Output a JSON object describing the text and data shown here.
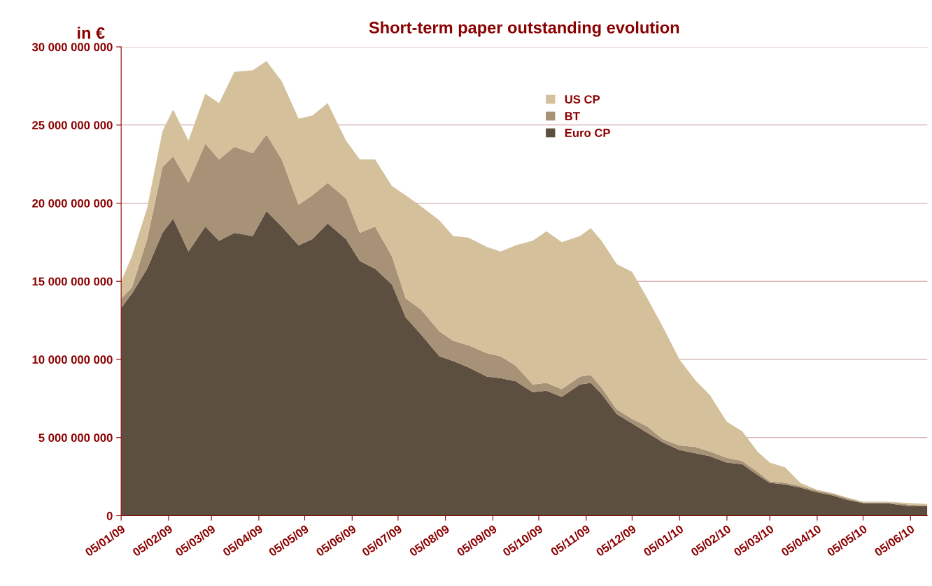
{
  "chart_data": {
    "type": "area",
    "stacked": true,
    "title": "Short-term paper outstanding evolution",
    "ylabel": "in €",
    "x": [
      "2009-01-05",
      "2009-01-12",
      "2009-01-22",
      "2009-02-01",
      "2009-02-08",
      "2009-02-18",
      "2009-03-01",
      "2009-03-10",
      "2009-03-20",
      "2009-04-01",
      "2009-04-10",
      "2009-04-20",
      "2009-05-01",
      "2009-05-10",
      "2009-05-20",
      "2009-06-01",
      "2009-06-10",
      "2009-06-20",
      "2009-07-01",
      "2009-07-10",
      "2009-07-20",
      "2009-08-01",
      "2009-08-10",
      "2009-08-20",
      "2009-09-01",
      "2009-09-10",
      "2009-09-20",
      "2009-10-01",
      "2009-10-10",
      "2009-10-20",
      "2009-11-01",
      "2009-11-08",
      "2009-11-15",
      "2009-11-25",
      "2009-12-05",
      "2009-12-15",
      "2009-12-25",
      "2010-01-05",
      "2010-01-15",
      "2010-01-25",
      "2010-02-05",
      "2010-02-15",
      "2010-02-25",
      "2010-03-05",
      "2010-03-15",
      "2010-03-25",
      "2010-04-05",
      "2010-04-15",
      "2010-04-25",
      "2010-05-05",
      "2010-05-20",
      "2010-06-05",
      "2010-06-16"
    ],
    "series": [
      {
        "name": "Euro CP",
        "color": "#5c4f3f",
        "values": [
          13300000000.0,
          14200000000.0,
          15800000000.0,
          18100000000.0,
          19000000000.0,
          16900000000.0,
          18500000000.0,
          17600000000.0,
          18100000000.0,
          17900000000.0,
          19500000000.0,
          18500000000.0,
          17300000000.0,
          17700000000.0,
          18700000000.0,
          17700000000.0,
          16300000000.0,
          15800000000.0,
          14800000000.0,
          12700000000.0,
          11600000000.0,
          10200000000.0,
          9900000000.0,
          9500000000.0,
          8900000000.0,
          8800000000.0,
          8600000000.0,
          7900000000.0,
          8000000000.0,
          7600000000.0,
          8400000000.0,
          8500000000.0,
          7800000000.0,
          6500000000.0,
          5900000000.0,
          5300000000.0,
          4700000000.0,
          4200000000.0,
          4000000000.0,
          3800000000.0,
          3400000000.0,
          3300000000.0,
          2600000000.0,
          2100000000.0,
          2000000000.0,
          1800000000.0,
          1500000000.0,
          1300000000.0,
          1000000000.0,
          800000000.0,
          800000000.0,
          600000000.0,
          600000000.0
        ]
      },
      {
        "name": "BT",
        "color": "#a89277",
        "values": [
          600000000.0,
          400000000.0,
          1900000000.0,
          4200000000.0,
          4000000000.0,
          4400000000.0,
          5300000000.0,
          5200000000.0,
          5500000000.0,
          5300000000.0,
          4900000000.0,
          4300000000.0,
          2600000000.0,
          2800000000.0,
          2600000000.0,
          2600000000.0,
          1800000000.0,
          2700000000.0,
          1800000000.0,
          1200000000.0,
          1600000000.0,
          1600000000.0,
          1300000000.0,
          1400000000.0,
          1500000000.0,
          1400000000.0,
          1000000000.0,
          500000000.0,
          500000000.0,
          500000000.0,
          500000000.0,
          500000000.0,
          400000000.0,
          300000000.0,
          300000000.0,
          400000000.0,
          200000000.0,
          300000000.0,
          400000000.0,
          300000000.0,
          300000000.0,
          200000000.0,
          200000000.0,
          100000000.0,
          100000000.0,
          100000000.0,
          100000000.0,
          100000000.0,
          100000000.0,
          50000000.0,
          50000000.0,
          100000000.0,
          50000000.0
        ]
      },
      {
        "name": "US CP",
        "color": "#d4c19c",
        "values": [
          1100000000.0,
          2000000000.0,
          2000000000.0,
          2300000000.0,
          3000000000.0,
          2700000000.0,
          3200000000.0,
          3600000000.0,
          4800000000.0,
          5300000000.0,
          4700000000.0,
          5000000000.0,
          5500000000.0,
          5100000000.0,
          5100000000.0,
          3700000000.0,
          4700000000.0,
          4300000000.0,
          4500000000.0,
          6600000000.0,
          6600000000.0,
          7100000000.0,
          6700000000.0,
          6900000000.0,
          6800000000.0,
          6700000000.0,
          7700000000.0,
          9200000000.0,
          9700000000.0,
          9400000000.0,
          9000000000.0,
          9400000000.0,
          9400000000.0,
          9300000000.0,
          9400000000.0,
          8200000000.0,
          7200000000.0,
          5500000000.0,
          4300000000.0,
          3600000000.0,
          2300000000.0,
          1900000000.0,
          1300000000.0,
          1200000000.0,
          1000000000.0,
          200000000.0,
          50000000.0,
          50000000.0,
          50000000.0,
          50000000.0,
          50000000.0,
          100000000.0,
          100000000.0
        ]
      }
    ],
    "xlim": [
      "2009-01-05",
      "2010-06-16"
    ],
    "xticks": [
      {
        "value": "2009-01-05",
        "label": "05/01/09"
      },
      {
        "value": "2009-02-05",
        "label": "05/02/09"
      },
      {
        "value": "2009-03-05",
        "label": "05/03/09"
      },
      {
        "value": "2009-04-05",
        "label": "05/04/09"
      },
      {
        "value": "2009-05-05",
        "label": "05/05/09"
      },
      {
        "value": "2009-06-05",
        "label": "05/06/09"
      },
      {
        "value": "2009-07-05",
        "label": "05/07/09"
      },
      {
        "value": "2009-08-05",
        "label": "05/08/09"
      },
      {
        "value": "2009-09-05",
        "label": "05/09/09"
      },
      {
        "value": "2009-10-05",
        "label": "05/10/09"
      },
      {
        "value": "2009-11-05",
        "label": "05/11/09"
      },
      {
        "value": "2009-12-05",
        "label": "05/12/09"
      },
      {
        "value": "2010-01-05",
        "label": "05/01/10"
      },
      {
        "value": "2010-02-05",
        "label": "05/02/10"
      },
      {
        "value": "2010-03-05",
        "label": "05/03/10"
      },
      {
        "value": "2010-04-05",
        "label": "05/04/10"
      },
      {
        "value": "2010-05-05",
        "label": "05/05/10"
      },
      {
        "value": "2010-06-05",
        "label": "05/06/10"
      }
    ],
    "ylim": [
      0,
      30000000000.0
    ],
    "yticks": [
      {
        "value": 0,
        "label": "0"
      },
      {
        "value": 5000000000.0,
        "label": "5 000 000 000"
      },
      {
        "value": 10000000000.0,
        "label": "10 000 000 000"
      },
      {
        "value": 15000000000.0,
        "label": "15 000 000 000"
      },
      {
        "value": 20000000000.0,
        "label": "20 000 000 000"
      },
      {
        "value": 25000000000.0,
        "label": "25 000 000 000"
      },
      {
        "value": 30000000000.0,
        "label": "30 000 000 000"
      }
    ],
    "grid": "y",
    "legend": "top right"
  }
}
